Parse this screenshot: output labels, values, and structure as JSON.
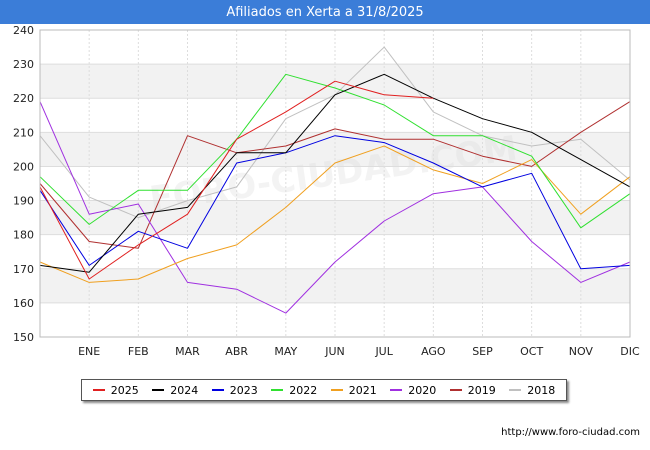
{
  "header": {
    "title": "Afiliados en Xerta a 31/8/2025"
  },
  "source": "http://www.foro-ciudad.com",
  "watermark": "FORO-CIUDAD.COM",
  "chart_data": {
    "type": "line",
    "title": "Afiliados en Xerta a 31/8/2025",
    "xlabel": "",
    "ylabel": "",
    "ylim": [
      150,
      240
    ],
    "yticks": [
      150,
      160,
      170,
      180,
      190,
      200,
      210,
      220,
      230,
      240
    ],
    "categories": [
      "",
      "ENE",
      "FEB",
      "MAR",
      "ABR",
      "MAY",
      "JUN",
      "JUL",
      "AGO",
      "SEP",
      "OCT",
      "NOV",
      "DIC"
    ],
    "grid": true,
    "legend_position": "bottom",
    "series": [
      {
        "name": "2018",
        "color": "#c0c0c0",
        "values": [
          209,
          191,
          185,
          190,
          194,
          214,
          221,
          235,
          216,
          209,
          206,
          208,
          196
        ]
      },
      {
        "name": "2019",
        "color": "#b03030",
        "values": [
          195,
          178,
          176,
          209,
          204,
          206,
          211,
          208,
          208,
          203,
          200,
          210,
          219
        ]
      },
      {
        "name": "2020",
        "color": "#a030e0",
        "values": [
          219,
          186,
          189,
          166,
          164,
          157,
          172,
          184,
          192,
          194,
          178,
          166,
          172
        ]
      },
      {
        "name": "2021",
        "color": "#f0a020",
        "values": [
          172,
          166,
          167,
          173,
          177,
          188,
          201,
          206,
          199,
          195,
          202,
          186,
          197
        ]
      },
      {
        "name": "2022",
        "color": "#30e030",
        "values": [
          197,
          183,
          193,
          193,
          208,
          227,
          223,
          218,
          209,
          209,
          203,
          182,
          192
        ]
      },
      {
        "name": "2023",
        "color": "#0000e0",
        "values": [
          193,
          171,
          181,
          176,
          201,
          204,
          209,
          207,
          201,
          194,
          198,
          170,
          171
        ]
      },
      {
        "name": "2024",
        "color": "#000000",
        "values": [
          171,
          169,
          186,
          188,
          204,
          204,
          221,
          227,
          220,
          214,
          210,
          202,
          194
        ]
      },
      {
        "name": "2025",
        "color": "#e02020",
        "values": [
          194,
          167,
          177,
          186,
          208,
          216,
          225,
          221,
          220,
          null,
          null,
          null,
          null
        ]
      }
    ],
    "legend_order": [
      "2025",
      "2024",
      "2023",
      "2022",
      "2021",
      "2020",
      "2019",
      "2018"
    ]
  }
}
